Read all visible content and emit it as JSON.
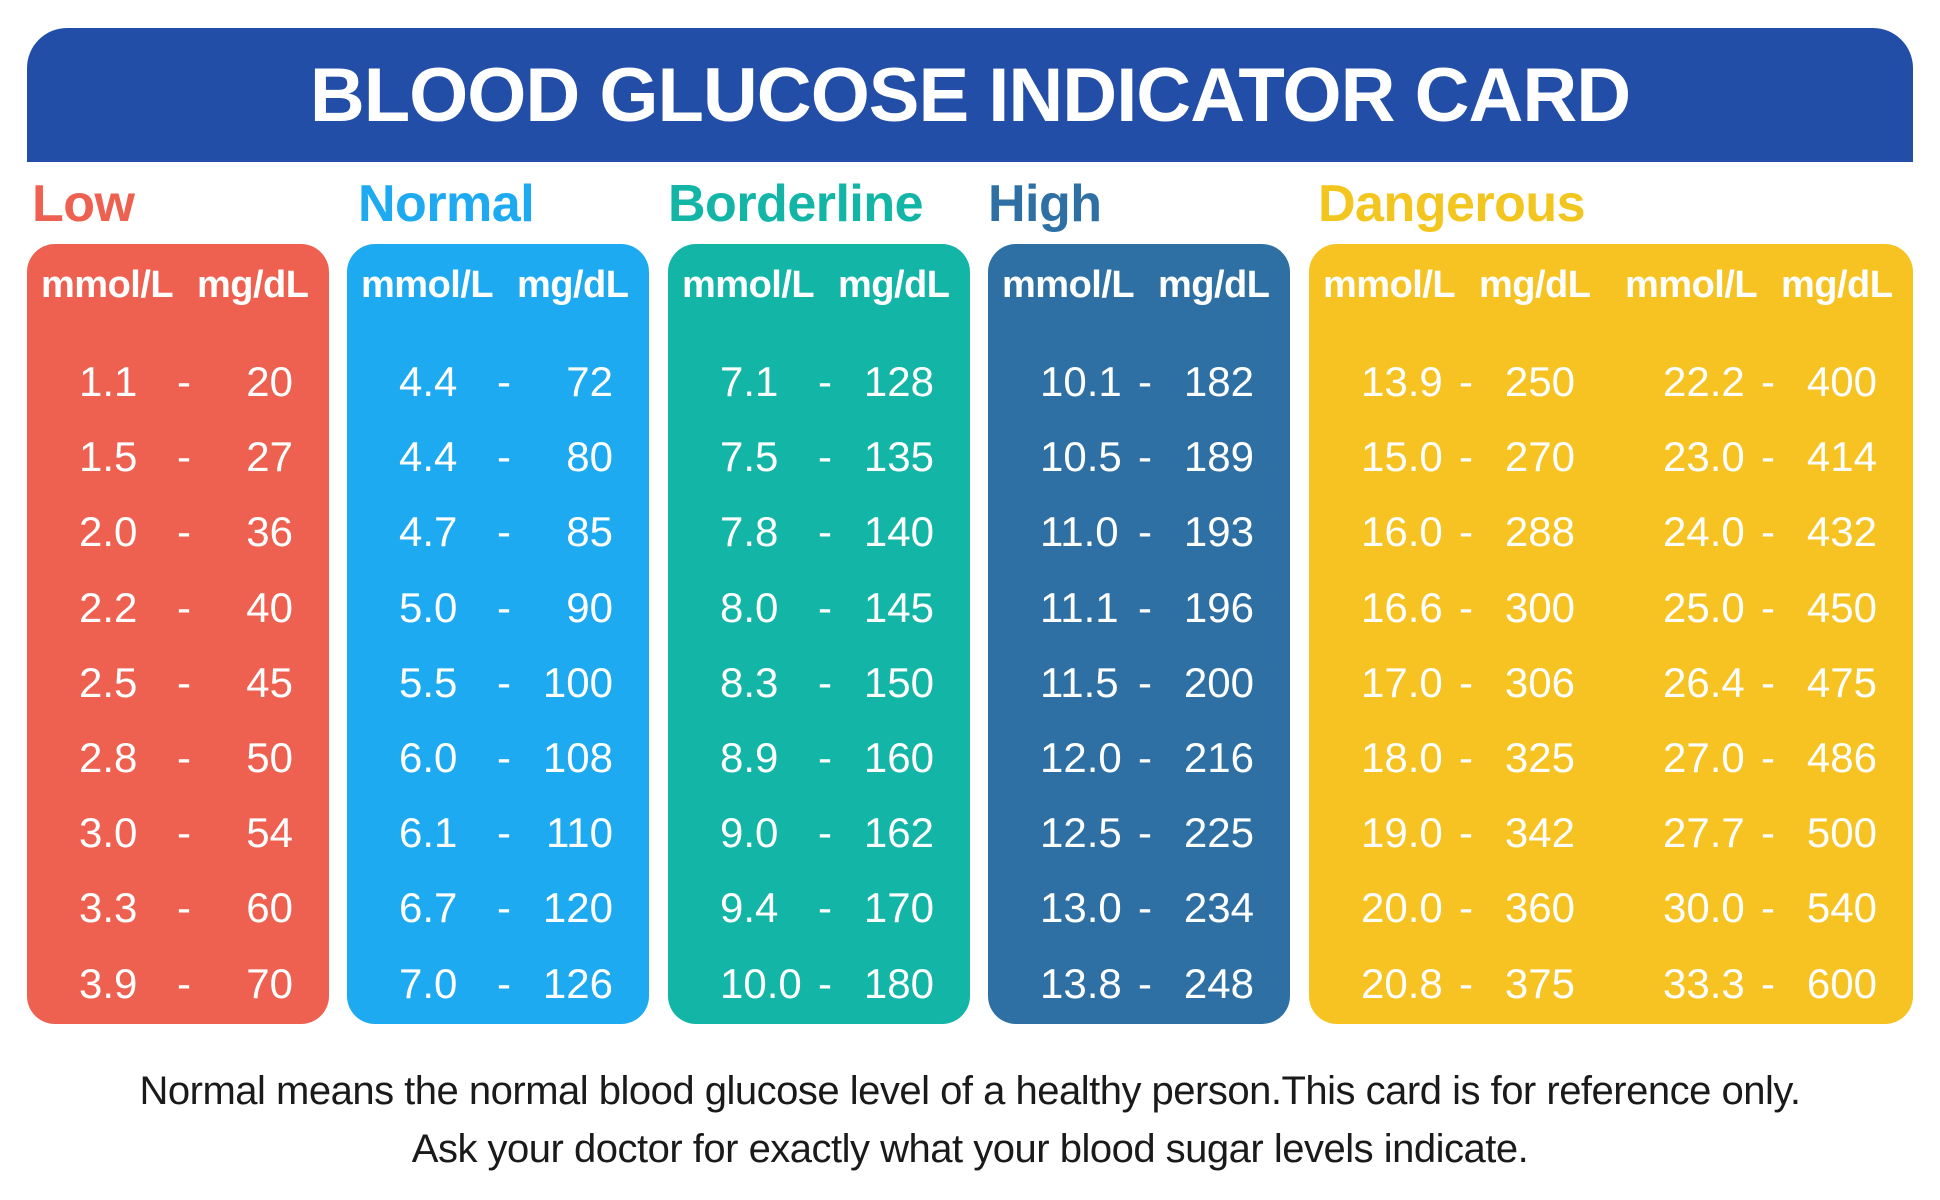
{
  "title": "BLOOD GLUCOSE INDICATOR CARD",
  "colors": {
    "banner": "#234ea8",
    "low": "#ee6150",
    "normal": "#1eaaf1",
    "borderline": "#13b5a6",
    "high": "#2f70a4",
    "dangerous": "#f6c322"
  },
  "unit_mmol": "mmol/L",
  "unit_mg": "mg/dL",
  "dash": "-",
  "categories": [
    {
      "key": "low",
      "label": "Low",
      "groups": [
        {
          "rows": [
            [
              "1.1",
              "20"
            ],
            [
              "1.5",
              "27"
            ],
            [
              "2.0",
              "36"
            ],
            [
              "2.2",
              "40"
            ],
            [
              "2.5",
              "45"
            ],
            [
              "2.8",
              "50"
            ],
            [
              "3.0",
              "54"
            ],
            [
              "3.3",
              "60"
            ],
            [
              "3.9",
              "70"
            ]
          ]
        }
      ]
    },
    {
      "key": "normal",
      "label": "Normal",
      "groups": [
        {
          "rows": [
            [
              "4.4",
              "72"
            ],
            [
              "4.4",
              "80"
            ],
            [
              "4.7",
              "85"
            ],
            [
              "5.0",
              "90"
            ],
            [
              "5.5",
              "100"
            ],
            [
              "6.0",
              "108"
            ],
            [
              "6.1",
              "110"
            ],
            [
              "6.7",
              "120"
            ],
            [
              "7.0",
              "126"
            ]
          ]
        }
      ]
    },
    {
      "key": "borderline",
      "label": "Borderline",
      "groups": [
        {
          "rows": [
            [
              "7.1",
              "128"
            ],
            [
              "7.5",
              "135"
            ],
            [
              "7.8",
              "140"
            ],
            [
              "8.0",
              "145"
            ],
            [
              "8.3",
              "150"
            ],
            [
              "8.9",
              "160"
            ],
            [
              "9.0",
              "162"
            ],
            [
              "9.4",
              "170"
            ],
            [
              "10.0",
              "180"
            ]
          ]
        }
      ]
    },
    {
      "key": "high",
      "label": "High",
      "groups": [
        {
          "rows": [
            [
              "10.1",
              "182"
            ],
            [
              "10.5",
              "189"
            ],
            [
              "11.0",
              "193"
            ],
            [
              "11.1",
              "196"
            ],
            [
              "11.5",
              "200"
            ],
            [
              "12.0",
              "216"
            ],
            [
              "12.5",
              "225"
            ],
            [
              "13.0",
              "234"
            ],
            [
              "13.8",
              "248"
            ]
          ]
        }
      ]
    },
    {
      "key": "dangerous",
      "label": "Dangerous",
      "groups": [
        {
          "rows": [
            [
              "13.9",
              "250"
            ],
            [
              "15.0",
              "270"
            ],
            [
              "16.0",
              "288"
            ],
            [
              "16.6",
              "300"
            ],
            [
              "17.0",
              "306"
            ],
            [
              "18.0",
              "325"
            ],
            [
              "19.0",
              "342"
            ],
            [
              "20.0",
              "360"
            ],
            [
              "20.8",
              "375"
            ]
          ]
        },
        {
          "rows": [
            [
              "22.2",
              "400"
            ],
            [
              "23.0",
              "414"
            ],
            [
              "24.0",
              "432"
            ],
            [
              "25.0",
              "450"
            ],
            [
              "26.4",
              "475"
            ],
            [
              "27.0",
              "486"
            ],
            [
              "27.7",
              "500"
            ],
            [
              "30.0",
              "540"
            ],
            [
              "33.3",
              "600"
            ]
          ]
        }
      ]
    }
  ],
  "footnote": [
    "Normal means the normal blood glucose level of a healthy person.This card is for reference only.",
    "Ask your doctor for exactly what your blood sugar levels indicate."
  ]
}
